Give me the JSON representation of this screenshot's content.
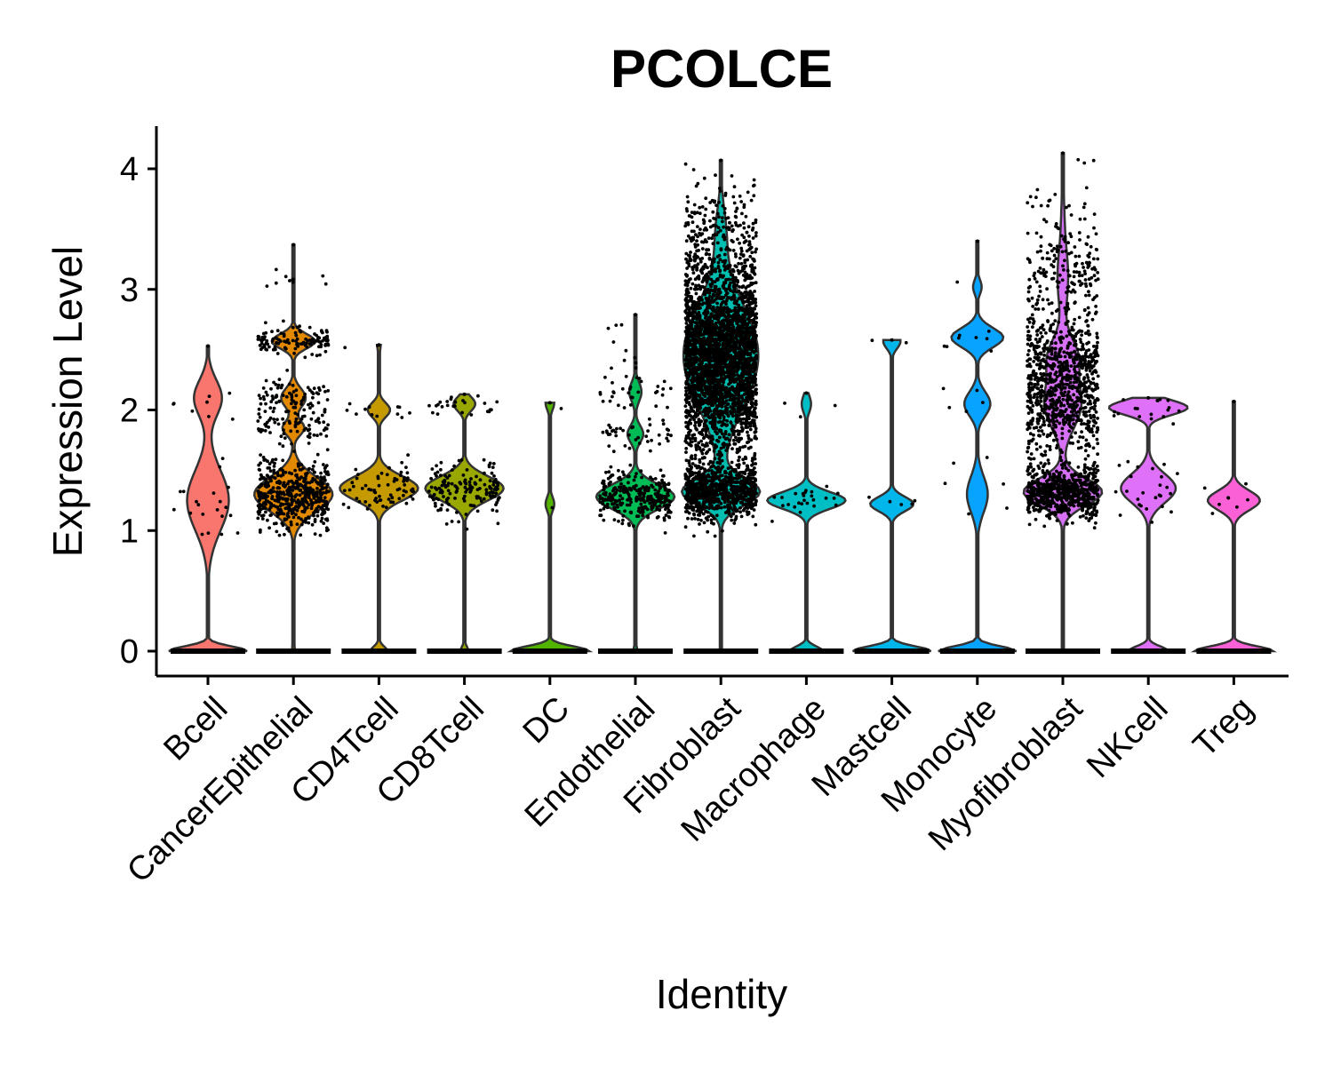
{
  "chart_data": {
    "type": "violin",
    "title": "PCOLCE",
    "xlabel": "Identity",
    "ylabel": "Expression Level",
    "ylim": [
      -0.2,
      4.35
    ],
    "yticks": [
      0,
      1,
      2,
      3,
      4
    ],
    "grid": false,
    "legend": "none",
    "categories": [
      "Bcell",
      "CancerEpithelial",
      "CD4Tcell",
      "CD8Tcell",
      "DC",
      "Endothelial",
      "Fibroblast",
      "Macrophage",
      "Mastcell",
      "Monocyte",
      "Myofibroblast",
      "NKcell",
      "Treg"
    ],
    "series": [
      {
        "category": "Bcell",
        "max": 2.53,
        "fill": "#F8766D",
        "point_clusters": [
          [
            1.25,
            0.25,
            20
          ],
          [
            2.1,
            0.15,
            8
          ]
        ]
      },
      {
        "category": "CancerEpithelial",
        "max": 3.37,
        "fill": "#E38900",
        "point_clusters": [
          [
            1.3,
            0.14,
            500
          ],
          [
            1.85,
            0.05,
            60
          ],
          [
            2.1,
            0.08,
            90
          ],
          [
            2.57,
            0.06,
            120
          ],
          [
            3.05,
            0.1,
            10
          ]
        ]
      },
      {
        "category": "CD4Tcell",
        "max": 2.54,
        "fill": "#C49A00",
        "point_clusters": [
          [
            1.35,
            0.1,
            70
          ],
          [
            2.0,
            0.05,
            12
          ],
          [
            2.55,
            0.02,
            2
          ]
        ]
      },
      {
        "category": "CD8Tcell",
        "max": 2.13,
        "fill": "#99A800",
        "point_clusters": [
          [
            1.35,
            0.1,
            150
          ],
          [
            2.05,
            0.05,
            25
          ]
        ]
      },
      {
        "category": "DC",
        "max": 2.06,
        "fill": "#53B400",
        "point_clusters": [
          [
            1.22,
            0.02,
            1
          ],
          [
            2.06,
            0.02,
            1
          ]
        ]
      },
      {
        "category": "Endothelial",
        "max": 2.79,
        "fill": "#00BC56",
        "point_clusters": [
          [
            1.28,
            0.1,
            280
          ],
          [
            1.8,
            0.07,
            40
          ],
          [
            2.15,
            0.08,
            35
          ],
          [
            2.6,
            0.12,
            8
          ]
        ]
      },
      {
        "category": "Fibroblast",
        "max": 4.07,
        "fill": "#00C094",
        "point_clusters": [
          [
            1.32,
            0.11,
            800
          ],
          [
            2.45,
            0.42,
            3000
          ],
          [
            3.5,
            0.2,
            150
          ]
        ]
      },
      {
        "category": "Macrophage",
        "max": 2.14,
        "fill": "#00BFC4",
        "point_clusters": [
          [
            1.25,
            0.07,
            25
          ],
          [
            2.05,
            0.07,
            3
          ]
        ]
      },
      {
        "category": "Mastcell",
        "max": 2.58,
        "fill": "#00B6EB",
        "point_clusters": [
          [
            1.22,
            0.03,
            5
          ],
          [
            2.57,
            0.02,
            2
          ]
        ]
      },
      {
        "category": "Monocyte",
        "max": 3.4,
        "fill": "#06A4FF",
        "point_clusters": [
          [
            1.3,
            0.15,
            6
          ],
          [
            2.05,
            0.1,
            5
          ],
          [
            2.6,
            0.08,
            8
          ],
          [
            3.02,
            0.03,
            1
          ]
        ]
      },
      {
        "category": "Myofibroblast",
        "max": 4.13,
        "fill": "#A58AFF",
        "point_clusters": [
          [
            1.32,
            0.11,
            650
          ],
          [
            2.05,
            0.2,
            550
          ],
          [
            2.45,
            0.15,
            300
          ],
          [
            3.1,
            0.25,
            200
          ],
          [
            3.65,
            0.18,
            30
          ]
        ]
      },
      {
        "category": "NKcell",
        "max": 2.1,
        "fill": "#DF70F8",
        "point_clusters": [
          [
            1.35,
            0.12,
            25
          ],
          [
            2.02,
            0.05,
            18
          ]
        ]
      },
      {
        "category": "Treg",
        "max": 2.07,
        "fill": "#FB61D7",
        "point_clusters": [
          [
            1.25,
            0.08,
            8
          ]
        ]
      }
    ],
    "violin_fills": {
      "Fibroblast": "#00BFB0",
      "Myofibroblast": "#D670F5"
    }
  }
}
